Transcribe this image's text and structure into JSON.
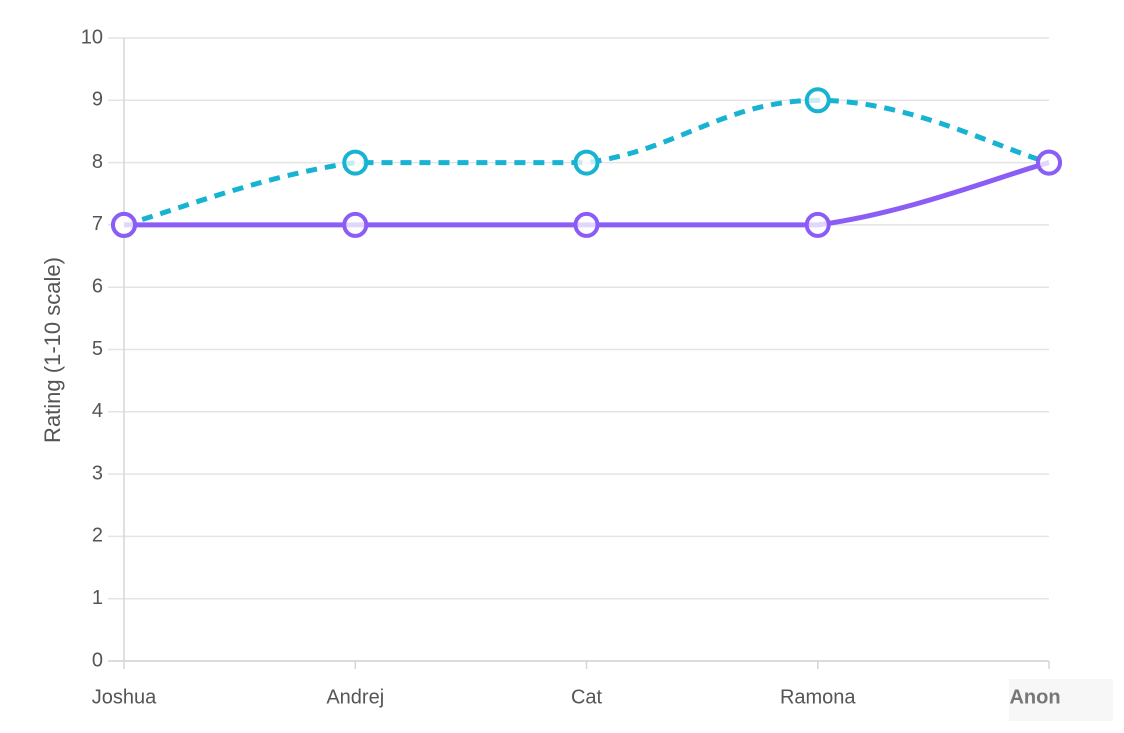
{
  "chart_data": {
    "type": "line",
    "categories": [
      "Joshua",
      "Andrej",
      "Cat",
      "Ramona",
      "Anon"
    ],
    "emphasized_category": "Anon",
    "ylabel": "Rating (1-10 scale)",
    "xlabel": "",
    "ylim": [
      0,
      10
    ],
    "yticks": [
      0,
      1,
      2,
      3,
      4,
      5,
      6,
      7,
      8,
      9,
      10
    ],
    "grid": "horizontal",
    "series": [
      {
        "values": [
          7,
          8,
          8,
          9,
          8
        ],
        "color": "#17b3d2",
        "style": "dashed"
      },
      {
        "values": [
          7,
          7,
          7,
          7,
          8
        ],
        "color": "#8b5cf6",
        "style": "solid"
      }
    ]
  }
}
